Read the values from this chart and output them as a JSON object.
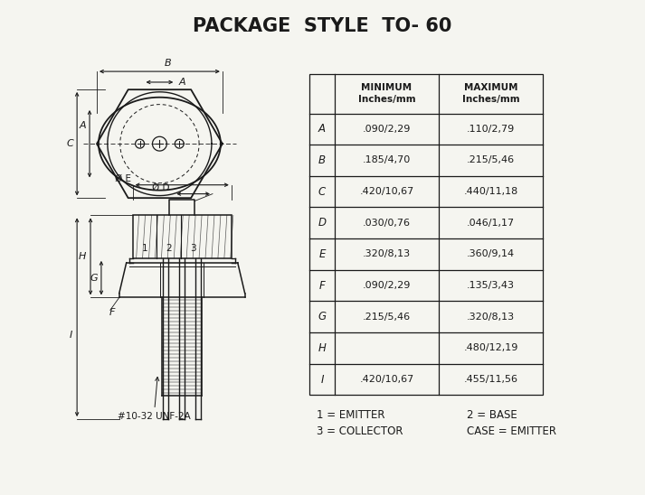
{
  "title": "PACKAGE  STYLE  TO- 60",
  "title_fontsize": 15,
  "title_fontweight": "bold",
  "background_color": "#f5f5f0",
  "table_headers": [
    "",
    "MINIMUM\nInches/mm",
    "MAXIMUM\nInches/mm"
  ],
  "table_rows": [
    [
      "A",
      ".090/2,29",
      ".110/2,79"
    ],
    [
      "B",
      ".185/4,70",
      ".215/5,46"
    ],
    [
      "C",
      ".420/10,67",
      ".440/11,18"
    ],
    [
      "D",
      ".030/0,76",
      ".046/1,17"
    ],
    [
      "E",
      ".320/8,13",
      ".360/9,14"
    ],
    [
      "F",
      ".090/2,29",
      ".135/3,43"
    ],
    [
      "G",
      ".215/5,46",
      ".320/8,13"
    ],
    [
      "H",
      "",
      ".480/12,19"
    ],
    [
      "I",
      ".420/10,67",
      ".455/11,56"
    ]
  ],
  "notes": [
    [
      "1 = EMITTER",
      "2 = BASE"
    ],
    [
      "3 = COLLECTOR",
      "CASE = EMITTER"
    ]
  ],
  "thread_label": "#10-32 UNF-2A",
  "line_color": "#1a1a1a",
  "table_line_color": "#1a1a1a",
  "text_color": "#1a1a1a",
  "fig_width": 7.13,
  "fig_height": 5.48,
  "dpi": 100
}
